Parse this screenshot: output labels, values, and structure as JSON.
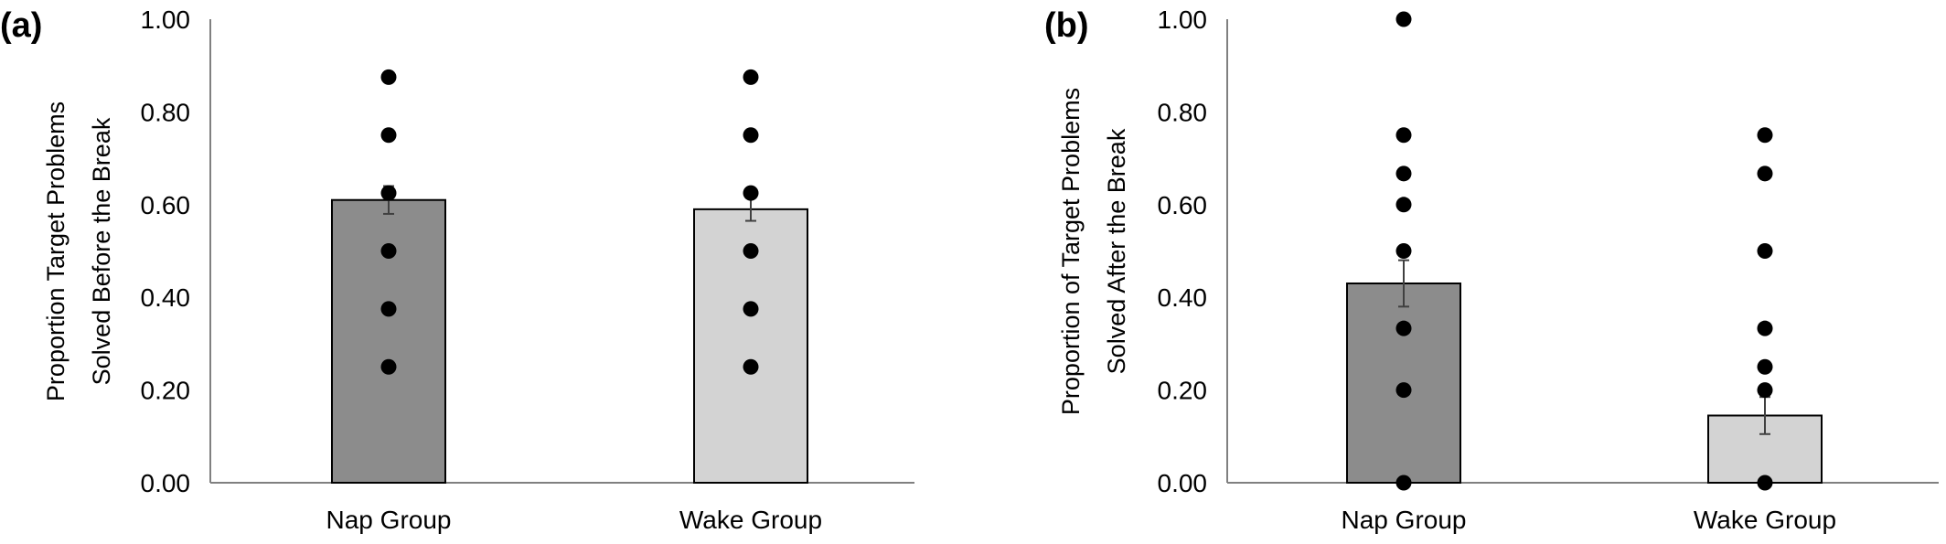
{
  "colors": {
    "nap_bar": "#8c8c8c",
    "wake_bar": "#d3d3d3",
    "bar_outline": "#000000",
    "points": "#000000",
    "error_bar": "#404040",
    "axis": "#808080"
  },
  "chart_data": [
    {
      "panel_label": "(a)",
      "type": "bar",
      "categories": [
        "Nap Group",
        "Wake Group"
      ],
      "values": [
        0.61,
        0.59
      ],
      "error": [
        0.03,
        0.025
      ],
      "points": [
        [
          0.25,
          0.375,
          0.5,
          0.625,
          0.75,
          0.875
        ],
        [
          0.25,
          0.375,
          0.5,
          0.625,
          0.75,
          0.875
        ]
      ],
      "ylabel_lines": [
        "Proportion Target Problems",
        "Solved Before the Break"
      ],
      "ylim": [
        0,
        1
      ],
      "yticks": [
        "0.00",
        "0.20",
        "0.40",
        "0.60",
        "0.80",
        "1.00"
      ],
      "grid": false
    },
    {
      "panel_label": "(b)",
      "type": "bar",
      "categories": [
        "Nap Group",
        "Wake Group"
      ],
      "values": [
        0.43,
        0.145
      ],
      "error": [
        0.05,
        0.04
      ],
      "points": [
        [
          0,
          0.2,
          0.333,
          0.5,
          0.6,
          0.667,
          0.75,
          1.0
        ],
        [
          0,
          0.2,
          0.25,
          0.333,
          0.5,
          0.667,
          0.75
        ]
      ],
      "ylabel_lines": [
        "Proportion of Target Problems",
        "Solved After the Break"
      ],
      "ylim": [
        0,
        1
      ],
      "yticks": [
        "0.00",
        "0.20",
        "0.40",
        "0.60",
        "0.80",
        "1.00"
      ],
      "grid": false
    }
  ]
}
